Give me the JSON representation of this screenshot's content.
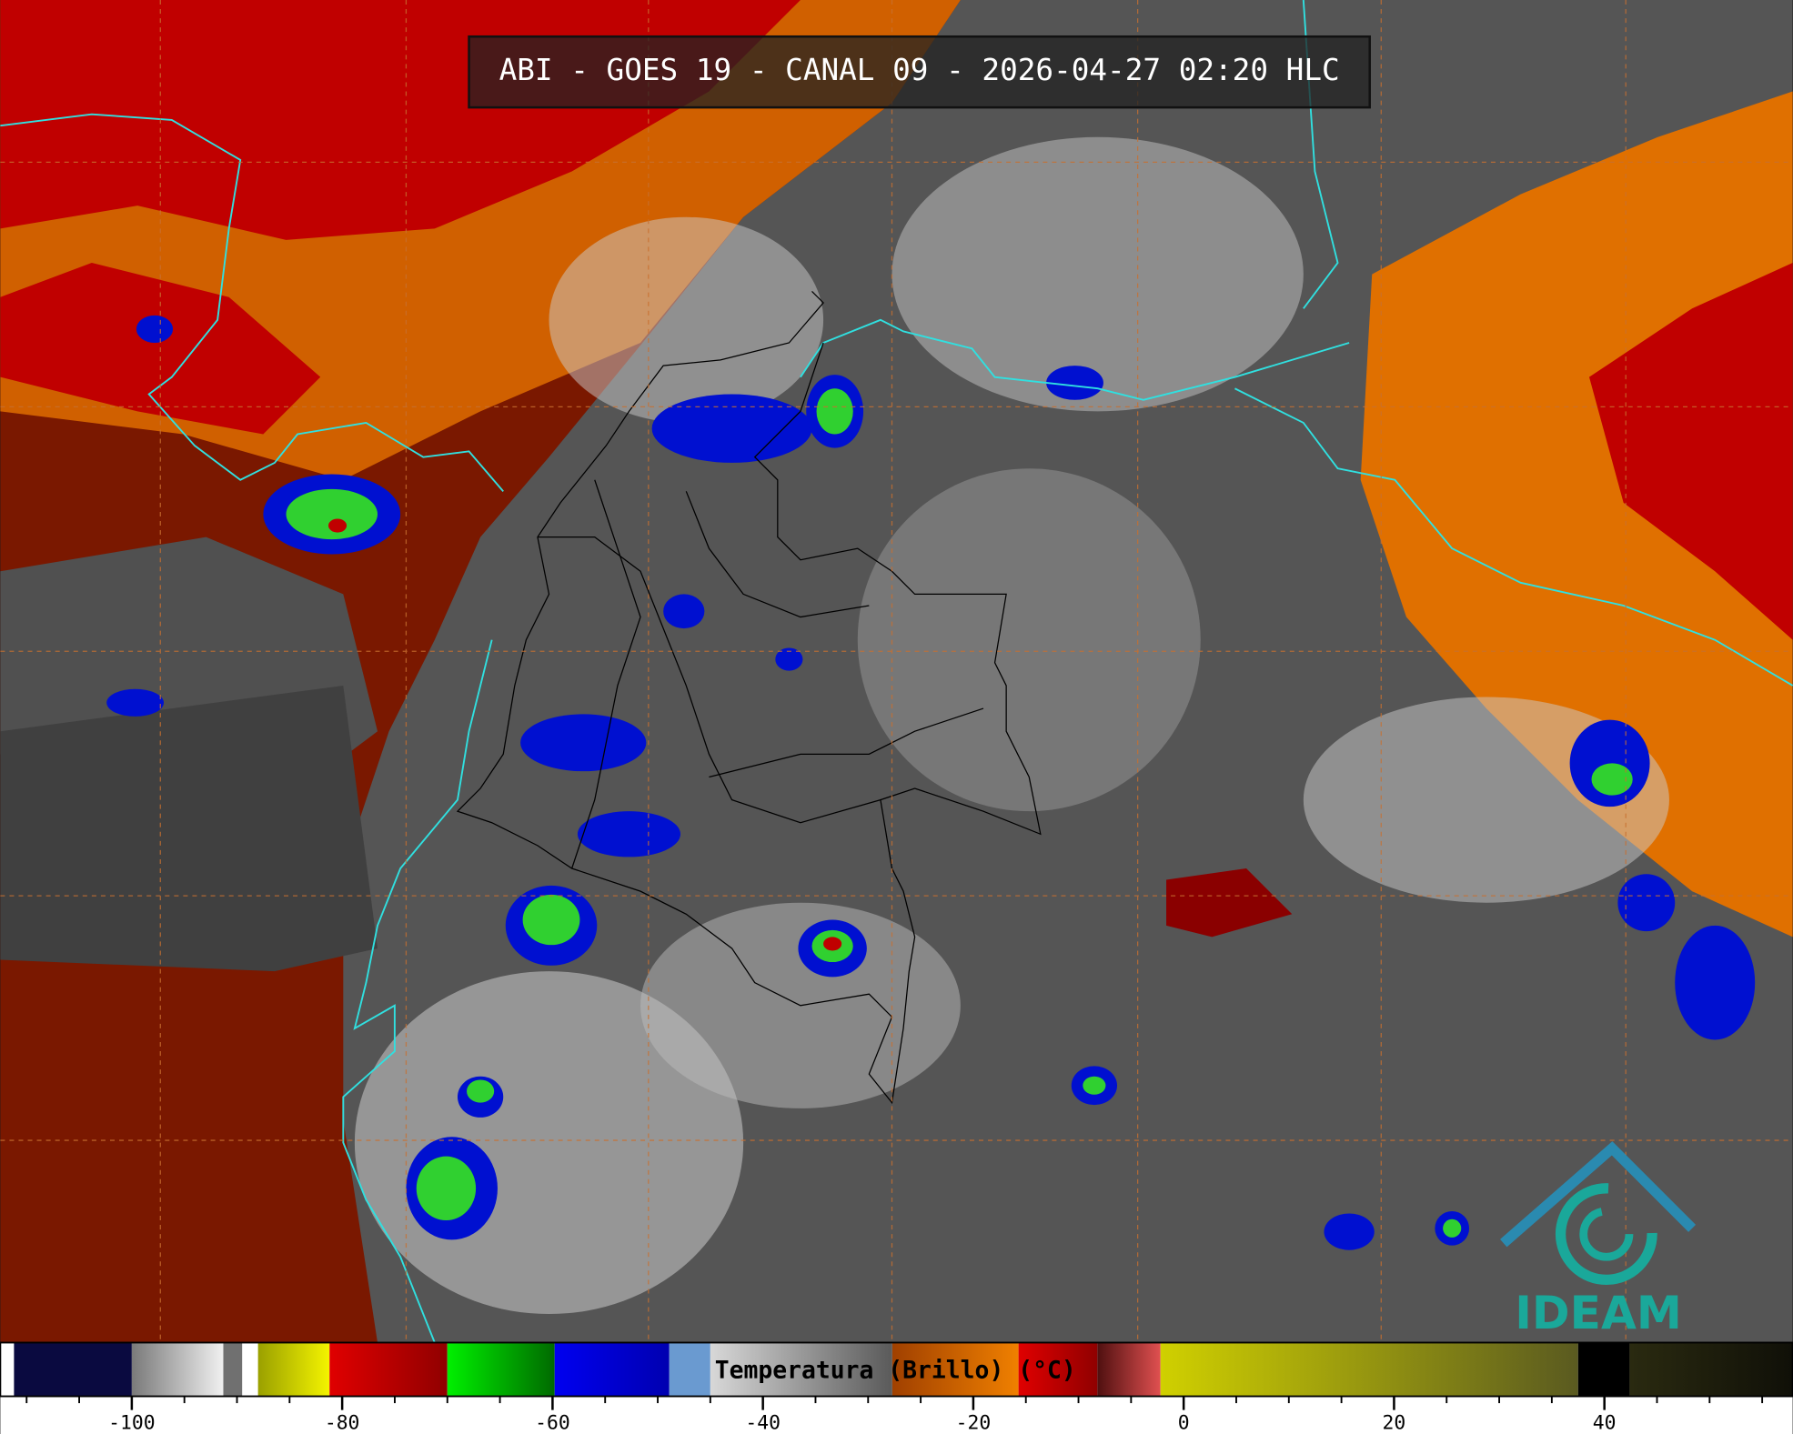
{
  "title": "ABI - GOES 19 - CANAL 09 - 2026-04-27 02:20 HLC",
  "colorbar": {
    "label": "Temperatura (Brillo) (°C)",
    "range": [
      -112.5,
      57.9
    ],
    "ticks": [
      -100,
      -80,
      -60,
      -40,
      -20,
      0,
      20,
      40
    ],
    "minor_ticks": [
      -110,
      -105,
      -95,
      -90,
      -85,
      -75,
      -70,
      -65,
      -55,
      -50,
      -45,
      -35,
      -30,
      -25,
      -15,
      -10,
      -5,
      5,
      10,
      15,
      25,
      30,
      35,
      45,
      50,
      55
    ],
    "segments": [
      {
        "from": -112.5,
        "to": -111.2,
        "color": "#ffffff"
      },
      {
        "from": -111.2,
        "to": -100,
        "color": "#0a0a40"
      },
      {
        "from": -100,
        "to": -91.3,
        "color": "#7a7a7a",
        "color2": "#f0f0f0"
      },
      {
        "from": -91.3,
        "to": -89.5,
        "color": "#707070"
      },
      {
        "from": -89.5,
        "to": -88,
        "color": "#ffffff"
      },
      {
        "from": -88,
        "to": -81.2,
        "color": "#9aa000",
        "color2": "#f4f400"
      },
      {
        "from": -81.2,
        "to": -70,
        "color": "#e00000",
        "color2": "#900000"
      },
      {
        "from": -70,
        "to": -59.8,
        "color": "#00f000",
        "color2": "#006a00"
      },
      {
        "from": -59.8,
        "to": -48.9,
        "color": "#0000f0",
        "color2": "#0000b0"
      },
      {
        "from": -48.9,
        "to": -45,
        "color": "#6a9ad0"
      },
      {
        "from": -45,
        "to": -27.7,
        "color": "#d8d8d8",
        "color2": "#5a5a5a"
      },
      {
        "from": -27.7,
        "to": -15.7,
        "color": "#a04000",
        "color2": "#f08000"
      },
      {
        "from": -15.7,
        "to": -8.2,
        "color": "#e00000",
        "color2": "#900000"
      },
      {
        "from": -8.2,
        "to": -2.2,
        "color": "#501010",
        "color2": "#e05050"
      },
      {
        "from": -2.2,
        "to": 37.5,
        "color": "#d0d000",
        "color2": "#5a5a20"
      },
      {
        "from": 37.5,
        "to": 42.4,
        "color": "#000000"
      },
      {
        "from": 42.4,
        "to": 57.9,
        "color": "#2a2a10",
        "color2": "#101008"
      }
    ]
  },
  "logo": {
    "text": "IDEAM"
  }
}
